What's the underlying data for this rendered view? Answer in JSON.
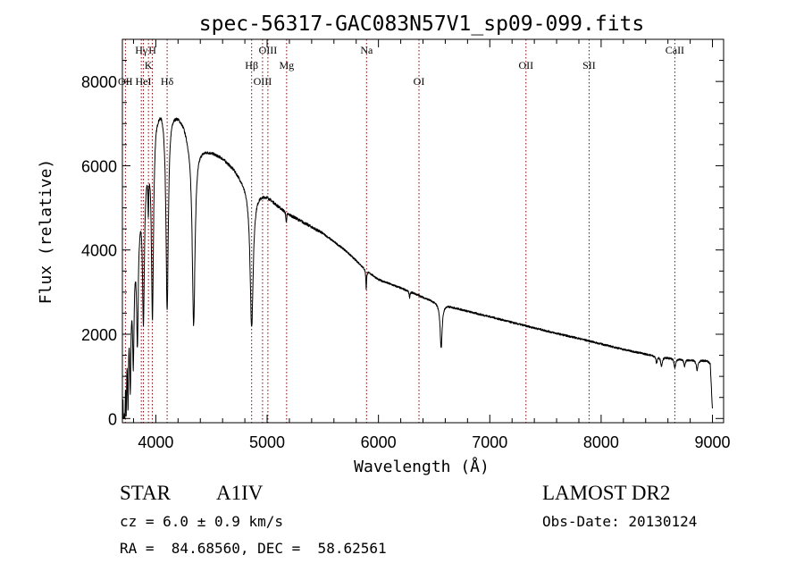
{
  "chart_data": {
    "type": "line",
    "title": "spec-56317-GAC083N57V1_sp09-099.fits",
    "xlabel": "Wavelength (Å)",
    "ylabel": "Flux (relative)",
    "xlim": [
      3700,
      9100
    ],
    "ylim": [
      -100,
      9000
    ],
    "grid": false,
    "x_ticks": [
      4000,
      5000,
      6000,
      7000,
      8000,
      9000
    ],
    "x_tick_labels": [
      "4000",
      "5000",
      "6000",
      "7000",
      "8000",
      "9000"
    ],
    "y_ticks": [
      0,
      2000,
      4000,
      6000,
      8000
    ],
    "y_tick_labels": [
      "0",
      "2000",
      "4000",
      "6000",
      "8000"
    ],
    "line_color": "#000000",
    "marker_color": "#8b0000",
    "line_markers": [
      {
        "label": "OII",
        "wavelength": 3727,
        "row": 3
      },
      {
        "label": "Hγ",
        "wavelength": 3870,
        "row": 1
      },
      {
        "label": "HeI",
        "wavelength": 3889,
        "row": 3
      },
      {
        "label": "K",
        "wavelength": 3934,
        "row": 2
      },
      {
        "label": "H",
        "wavelength": 3969,
        "row": 1
      },
      {
        "label": "Hδ",
        "wavelength": 4102,
        "row": 3
      },
      {
        "label": "Hβ",
        "wavelength": 4861,
        "row": 2
      },
      {
        "label": "OIII",
        "wavelength": 4959,
        "row": 3
      },
      {
        "label": "OIII",
        "wavelength": 5007,
        "row": 1
      },
      {
        "label": "Mg",
        "wavelength": 5175,
        "row": 2
      },
      {
        "label": "Na",
        "wavelength": 5893,
        "row": 1
      },
      {
        "label": "OI",
        "wavelength": 6364,
        "row": 3
      },
      {
        "label": "OII",
        "wavelength": 7325,
        "row": 2
      },
      {
        "label": "SII",
        "wavelength": 7892,
        "row": 2
      },
      {
        "label": "CaII",
        "wavelength": 8662,
        "row": 1
      }
    ],
    "spectrum": {
      "continuum": [
        [
          3700,
          0
        ],
        [
          3705,
          1600
        ],
        [
          3720,
          2500
        ],
        [
          3760,
          3200
        ],
        [
          3800,
          4000
        ],
        [
          3850,
          5000
        ],
        [
          3900,
          5900
        ],
        [
          3950,
          6600
        ],
        [
          4000,
          7300
        ],
        [
          4050,
          7500
        ],
        [
          4100,
          7450
        ],
        [
          4150,
          7350
        ],
        [
          4200,
          7250
        ],
        [
          4250,
          7050
        ],
        [
          4300,
          6700
        ],
        [
          4350,
          6500
        ],
        [
          4400,
          6450
        ],
        [
          4450,
          6400
        ],
        [
          4500,
          6350
        ],
        [
          4600,
          6200
        ],
        [
          4700,
          5950
        ],
        [
          4800,
          5600
        ],
        [
          4900,
          5400
        ],
        [
          5000,
          5300
        ],
        [
          5100,
          5050
        ],
        [
          5200,
          4850
        ],
        [
          5300,
          4700
        ],
        [
          5400,
          4550
        ],
        [
          5500,
          4400
        ],
        [
          5600,
          4200
        ],
        [
          5700,
          4000
        ],
        [
          5800,
          3750
        ],
        [
          5900,
          3500
        ],
        [
          6000,
          3300
        ],
        [
          6100,
          3200
        ],
        [
          6200,
          3100
        ],
        [
          6300,
          3000
        ],
        [
          6400,
          2880
        ],
        [
          6500,
          2780
        ],
        [
          6600,
          2700
        ],
        [
          6700,
          2620
        ],
        [
          6800,
          2550
        ],
        [
          6900,
          2480
        ],
        [
          7000,
          2420
        ],
        [
          7200,
          2280
        ],
        [
          7400,
          2150
        ],
        [
          7600,
          2020
        ],
        [
          7800,
          1900
        ],
        [
          8000,
          1770
        ],
        [
          8200,
          1640
        ],
        [
          8400,
          1530
        ],
        [
          8500,
          1480
        ],
        [
          8600,
          1440
        ],
        [
          8700,
          1410
        ],
        [
          8800,
          1390
        ],
        [
          8900,
          1380
        ],
        [
          8950,
          1370
        ],
        [
          8980,
          1300
        ],
        [
          9000,
          200
        ]
      ],
      "absorption_lines": [
        {
          "center": 3712,
          "depth": 2200,
          "width": 5
        },
        {
          "center": 3722,
          "depth": 1700,
          "width": 5
        },
        {
          "center": 3734,
          "depth": 1900,
          "width": 5
        },
        {
          "center": 3750,
          "depth": 2200,
          "width": 6
        },
        {
          "center": 3771,
          "depth": 2300,
          "width": 7
        },
        {
          "center": 3798,
          "depth": 2400,
          "width": 8
        },
        {
          "center": 3835,
          "depth": 2700,
          "width": 9
        },
        {
          "center": 3889,
          "depth": 3300,
          "width": 10
        },
        {
          "center": 3933,
          "depth": 1000,
          "width": 4
        },
        {
          "center": 3970,
          "depth": 4400,
          "width": 11
        },
        {
          "center": 4102,
          "depth": 4800,
          "width": 13
        },
        {
          "center": 4340,
          "depth": 4300,
          "width": 15
        },
        {
          "center": 4861,
          "depth": 3300,
          "width": 17
        },
        {
          "center": 5172,
          "depth": 250,
          "width": 4
        },
        {
          "center": 5890,
          "depth": 450,
          "width": 4
        },
        {
          "center": 6280,
          "depth": 150,
          "width": 5
        },
        {
          "center": 6563,
          "depth": 1050,
          "width": 11
        },
        {
          "center": 8498,
          "depth": 160,
          "width": 7
        },
        {
          "center": 8542,
          "depth": 220,
          "width": 8
        },
        {
          "center": 8662,
          "depth": 220,
          "width": 8
        },
        {
          "center": 8750,
          "depth": 160,
          "width": 7
        },
        {
          "center": 8862,
          "depth": 230,
          "width": 9
        }
      ],
      "noise_amplitude": 45
    }
  },
  "info": {
    "object_class": "STAR",
    "subclass": "A1IV",
    "survey": "LAMOST DR2",
    "redshift": "cz = 6.0 ± 0.9 km/s",
    "obs_date": "Obs-Date: 20130124",
    "coords": "RA =  84.68560, DEC =  58.62561"
  }
}
